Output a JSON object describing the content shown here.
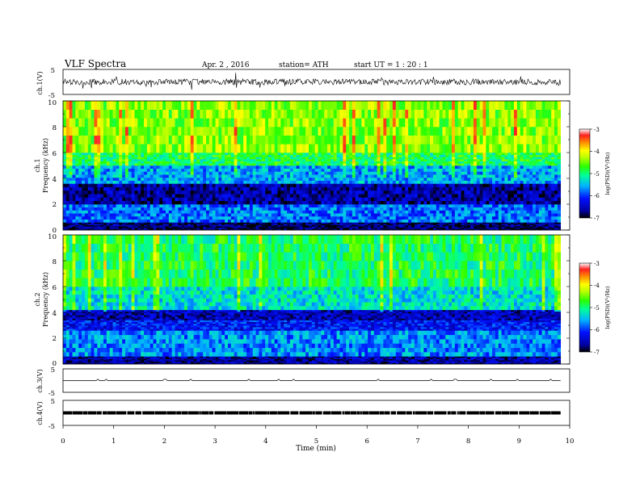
{
  "header": {
    "title": "VLF  Spectra",
    "date": "Apr. 2  , 2016",
    "station": "station= ATH",
    "start": "start  UT  =    1  : 20 : 1"
  },
  "xaxis": {
    "label": "Time  (min)",
    "ticks": [
      "0",
      "1",
      "2",
      "3",
      "4",
      "5",
      "6",
      "7",
      "8",
      "9",
      "10"
    ]
  },
  "colorbar": {
    "label": "log(PSD)(V²/Hz)",
    "ticks": [
      "-3",
      "-4",
      "-5",
      "-6",
      "-7"
    ]
  },
  "panels": {
    "ch1v": {
      "label": "ch.1(V)",
      "yticks": [
        "5",
        "-5"
      ]
    },
    "ch1": {
      "label": "ch.1",
      "ylabel": "Frequency  (kHz)",
      "yticks": [
        "10",
        "8",
        "6",
        "4",
        "2",
        "0"
      ]
    },
    "ch2": {
      "label": "ch.2",
      "ylabel": "Frequency  (kHz)",
      "yticks": [
        "10",
        "8",
        "6",
        "4",
        "2",
        "0"
      ]
    },
    "ch3v": {
      "label": "ch.3(V)",
      "yticks": [
        "5",
        "-5"
      ]
    },
    "ch4v": {
      "label": "ch.4(V)",
      "yticks": [
        "5",
        "-5"
      ]
    }
  },
  "chart_data": [
    {
      "type": "line",
      "name": "ch.1(V)",
      "xlim": [
        0,
        10
      ],
      "ylim": [
        -5,
        5
      ],
      "x_range_data": [
        0,
        9.82
      ],
      "approx_level": 0,
      "approx_amplitude": 1.2,
      "color": "#000000"
    },
    {
      "type": "heatmap",
      "name": "ch.1",
      "xlim": [
        0,
        10
      ],
      "ylim": [
        0,
        10
      ],
      "xlabel": "Time  (min)",
      "ylabel": "Frequency  (kHz)",
      "colorbar_label": "log(PSD)(V²/Hz)",
      "clim": [
        -7,
        -3
      ],
      "bands": [
        {
          "freq_kHz": [
            0,
            0.6
          ],
          "log_psd": -6.8
        },
        {
          "freq_kHz": [
            0.6,
            2.0
          ],
          "log_psd": -5.8
        },
        {
          "freq_kHz": [
            2.0,
            3.6
          ],
          "log_psd": -6.6
        },
        {
          "freq_kHz": [
            3.6,
            5.0
          ],
          "log_psd": -5.6
        },
        {
          "freq_kHz": [
            5.0,
            6.0
          ],
          "log_psd": -4.9
        },
        {
          "freq_kHz": [
            6.0,
            10.0
          ],
          "log_psd": -4.4
        }
      ]
    },
    {
      "type": "heatmap",
      "name": "ch.2",
      "xlim": [
        0,
        10
      ],
      "ylim": [
        0,
        10
      ],
      "xlabel": "Time  (min)",
      "ylabel": "Frequency  (kHz)",
      "colorbar_label": "log(PSD)(V²/Hz)",
      "clim": [
        -7,
        -3
      ],
      "bands": [
        {
          "freq_kHz": [
            0,
            0.6
          ],
          "log_psd": -6.6
        },
        {
          "freq_kHz": [
            0.6,
            2.6
          ],
          "log_psd": -5.7
        },
        {
          "freq_kHz": [
            2.6,
            3.4
          ],
          "log_psd": -6.2
        },
        {
          "freq_kHz": [
            3.4,
            4.2
          ],
          "log_psd": -6.5
        },
        {
          "freq_kHz": [
            4.2,
            6.0
          ],
          "log_psd": -5.3
        },
        {
          "freq_kHz": [
            6.0,
            10.0
          ],
          "log_psd": -4.9
        }
      ]
    },
    {
      "type": "line",
      "name": "ch.3(V)",
      "xlim": [
        0,
        10
      ],
      "ylim": [
        -5,
        5
      ],
      "x_range_data": [
        0,
        9.82
      ],
      "approx_level": 0,
      "color": "#000000"
    },
    {
      "type": "line",
      "name": "ch.4(V)",
      "xlim": [
        0,
        10
      ],
      "ylim": [
        -5,
        5
      ],
      "x_range_data": [
        0,
        9.82
      ],
      "approx_level": 0,
      "color": "#000000"
    }
  ]
}
